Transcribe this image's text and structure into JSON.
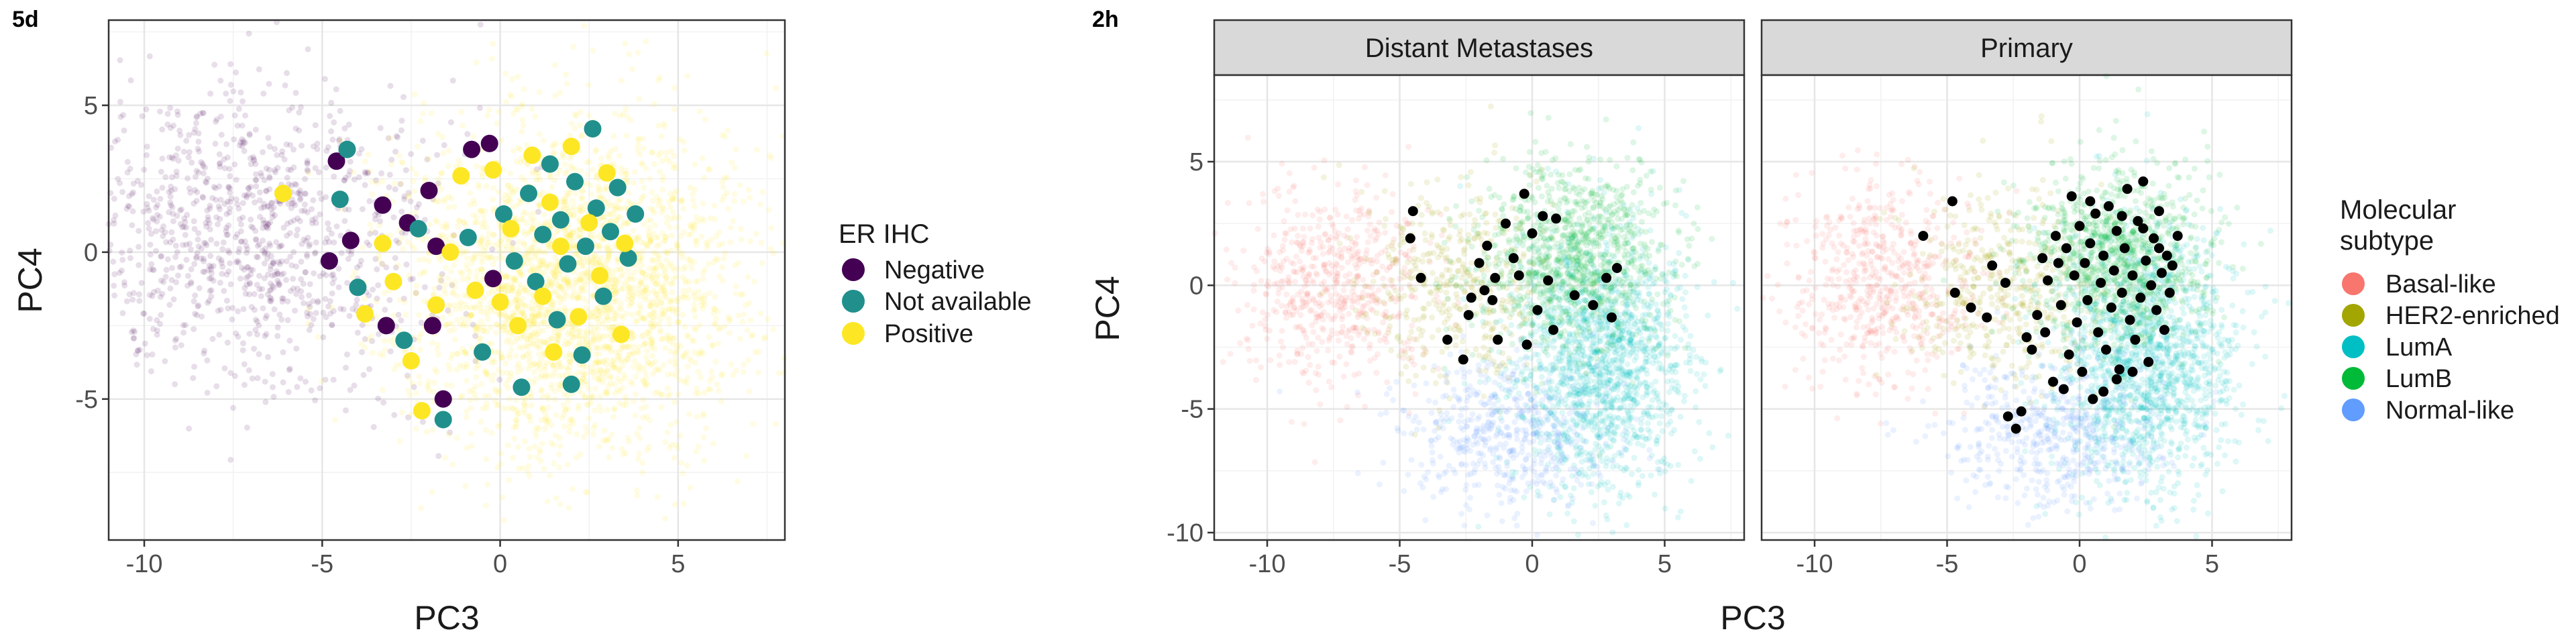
{
  "figure": {
    "panel_left_label": "5d",
    "panel_right_label": "2h",
    "facet_strip_labels": [
      "Distant Metastases",
      "Primary"
    ]
  },
  "chart_data": [
    {
      "id": "5d",
      "type": "scatter",
      "title": "",
      "xlabel": "PC3",
      "ylabel": "PC4",
      "xlim": [
        -11,
        8
      ],
      "ylim": [
        -9.8,
        7.9
      ],
      "xticks": [
        -10,
        -5,
        0,
        5
      ],
      "yticks": [
        -5,
        0,
        5
      ],
      "grid": true,
      "legend_title": "ER IHC",
      "legend_position": "right",
      "series": [
        {
          "name": "Negative",
          "color": "#440154",
          "background_cloud": {
            "role": "faint density cloud",
            "center": [
              -7,
              0.5
            ],
            "spread": [
              2.6,
              2.6
            ],
            "count": 1100
          }
        },
        {
          "name": "Not available",
          "color": "#21908C"
        },
        {
          "name": "Positive",
          "color": "#FDE725",
          "background_cloud": {
            "role": "faint density cloud",
            "center": [
              2,
              -1.2
            ],
            "spread": [
              2.4,
              2.8
            ],
            "count": 2800
          }
        }
      ],
      "highlighted_points": [
        {
          "series": "Negative",
          "x": -4.6,
          "y": 3.1
        },
        {
          "series": "Negative",
          "x": -4.8,
          "y": -0.3
        },
        {
          "series": "Negative",
          "x": -4.2,
          "y": 0.4
        },
        {
          "series": "Negative",
          "x": -3.3,
          "y": 1.6
        },
        {
          "series": "Negative",
          "x": -3.2,
          "y": -2.5
        },
        {
          "series": "Negative",
          "x": -2.6,
          "y": 1.0
        },
        {
          "series": "Negative",
          "x": -2.0,
          "y": 2.1
        },
        {
          "series": "Negative",
          "x": -1.8,
          "y": 0.2
        },
        {
          "series": "Negative",
          "x": -1.9,
          "y": -2.5
        },
        {
          "series": "Negative",
          "x": -1.6,
          "y": -5.0
        },
        {
          "series": "Negative",
          "x": -0.8,
          "y": 3.5
        },
        {
          "series": "Negative",
          "x": -0.3,
          "y": 3.7
        },
        {
          "series": "Negative",
          "x": -0.2,
          "y": -0.9
        },
        {
          "series": "Not available",
          "x": -4.3,
          "y": 3.5
        },
        {
          "series": "Not available",
          "x": -4.5,
          "y": 1.8
        },
        {
          "series": "Not available",
          "x": -4.0,
          "y": -1.2
        },
        {
          "series": "Not available",
          "x": -2.7,
          "y": -3.0
        },
        {
          "series": "Not available",
          "x": -2.3,
          "y": 0.8
        },
        {
          "series": "Not available",
          "x": -1.6,
          "y": -5.7
        },
        {
          "series": "Not available",
          "x": -0.9,
          "y": 0.5
        },
        {
          "series": "Not available",
          "x": -0.5,
          "y": -3.4
        },
        {
          "series": "Not available",
          "x": 0.1,
          "y": 1.3
        },
        {
          "series": "Not available",
          "x": 0.4,
          "y": -0.3
        },
        {
          "series": "Not available",
          "x": 0.6,
          "y": -4.6
        },
        {
          "series": "Not available",
          "x": 0.8,
          "y": 2.0
        },
        {
          "series": "Not available",
          "x": 1.0,
          "y": -1.0
        },
        {
          "series": "Not available",
          "x": 1.2,
          "y": 0.6
        },
        {
          "series": "Not available",
          "x": 1.4,
          "y": 3.0
        },
        {
          "series": "Not available",
          "x": 1.6,
          "y": -2.3
        },
        {
          "series": "Not available",
          "x": 1.7,
          "y": 1.1
        },
        {
          "series": "Not available",
          "x": 1.9,
          "y": -0.4
        },
        {
          "series": "Not available",
          "x": 2.1,
          "y": 2.4
        },
        {
          "series": "Not available",
          "x": 2.3,
          "y": -3.5
        },
        {
          "series": "Not available",
          "x": 2.4,
          "y": 0.2
        },
        {
          "series": "Not available",
          "x": 2.6,
          "y": 4.2
        },
        {
          "series": "Not available",
          "x": 2.7,
          "y": 1.5
        },
        {
          "series": "Not available",
          "x": 2.9,
          "y": -1.5
        },
        {
          "series": "Not available",
          "x": 3.1,
          "y": 0.7
        },
        {
          "series": "Not available",
          "x": 3.3,
          "y": 2.2
        },
        {
          "series": "Not available",
          "x": 3.6,
          "y": -0.2
        },
        {
          "series": "Not available",
          "x": 3.8,
          "y": 1.3
        },
        {
          "series": "Not available",
          "x": 2.0,
          "y": -4.5
        },
        {
          "series": "Positive",
          "x": -6.1,
          "y": 2.0
        },
        {
          "series": "Positive",
          "x": -3.8,
          "y": -2.1
        },
        {
          "series": "Positive",
          "x": -3.3,
          "y": 0.3
        },
        {
          "series": "Positive",
          "x": -3.0,
          "y": -1.0
        },
        {
          "series": "Positive",
          "x": -2.5,
          "y": -3.7
        },
        {
          "series": "Positive",
          "x": -2.2,
          "y": -5.4
        },
        {
          "series": "Positive",
          "x": -1.8,
          "y": -1.8
        },
        {
          "series": "Positive",
          "x": -1.4,
          "y": 0.0
        },
        {
          "series": "Positive",
          "x": -1.1,
          "y": 2.6
        },
        {
          "series": "Positive",
          "x": -0.7,
          "y": -1.3
        },
        {
          "series": "Positive",
          "x": -0.2,
          "y": 2.8
        },
        {
          "series": "Positive",
          "x": 0.3,
          "y": 0.8
        },
        {
          "series": "Positive",
          "x": 0.5,
          "y": -2.5
        },
        {
          "series": "Positive",
          "x": 0.9,
          "y": 3.3
        },
        {
          "series": "Positive",
          "x": 1.2,
          "y": -1.5
        },
        {
          "series": "Positive",
          "x": 1.4,
          "y": 1.7
        },
        {
          "series": "Positive",
          "x": 1.7,
          "y": 0.2
        },
        {
          "series": "Positive",
          "x": 2.0,
          "y": 3.6
        },
        {
          "series": "Positive",
          "x": 2.2,
          "y": -2.2
        },
        {
          "series": "Positive",
          "x": 2.5,
          "y": 1.0
        },
        {
          "series": "Positive",
          "x": 2.8,
          "y": -0.8
        },
        {
          "series": "Positive",
          "x": 3.0,
          "y": 2.7
        },
        {
          "series": "Positive",
          "x": 3.4,
          "y": -2.8
        },
        {
          "series": "Positive",
          "x": 3.5,
          "y": 0.3
        },
        {
          "series": "Positive",
          "x": 1.5,
          "y": -3.4
        },
        {
          "series": "Positive",
          "x": 0.0,
          "y": -1.7
        }
      ]
    },
    {
      "id": "2h",
      "type": "scatter",
      "title": "",
      "xlabel": "PC3",
      "ylabel": "PC4",
      "xlim": [
        -12,
        8
      ],
      "ylim": [
        -10.3,
        8.5
      ],
      "xticks": [
        -10,
        -5,
        0,
        5
      ],
      "yticks": [
        -10,
        -5,
        0,
        5
      ],
      "grid": true,
      "facets": [
        "Distant Metastases",
        "Primary"
      ],
      "legend_title_lines": [
        "Molecular",
        "subtype"
      ],
      "legend_position": "right",
      "series": [
        {
          "name": "Basal-like",
          "color": "#F8766D",
          "background_cloud": {
            "role": "faint density cloud",
            "center": [
              -7.5,
              0.0
            ],
            "spread": [
              1.8,
              2.0
            ],
            "count": 700
          }
        },
        {
          "name": "HER2-enriched",
          "color": "#A3A500",
          "background_cloud": {
            "role": "faint density cloud",
            "center": [
              -3.0,
              0.0
            ],
            "spread": [
              1.8,
              2.0
            ],
            "count": 500
          }
        },
        {
          "name": "LumA",
          "color": "#00BFC4",
          "background_cloud": {
            "role": "faint density cloud",
            "center": [
              2.5,
              -3.0
            ],
            "spread": [
              1.7,
              2.6
            ],
            "count": 1800
          }
        },
        {
          "name": "LumB",
          "color": "#00BA38",
          "background_cloud": {
            "role": "faint density cloud",
            "center": [
              1.5,
              1.2
            ],
            "spread": [
              1.7,
              1.8
            ],
            "count": 1200
          }
        },
        {
          "name": "Normal-like",
          "color": "#619CFF",
          "background_cloud": {
            "role": "faint density cloud",
            "center": [
              -1.0,
              -6.0
            ],
            "spread": [
              2.0,
              1.5
            ],
            "count": 600
          }
        }
      ],
      "highlighted_points_distant_metastases": [
        {
          "x": -4.5,
          "y": 3.0
        },
        {
          "x": -4.6,
          "y": 1.9
        },
        {
          "x": -4.2,
          "y": 0.3
        },
        {
          "x": -3.2,
          "y": -2.2
        },
        {
          "x": -2.6,
          "y": -3.0
        },
        {
          "x": -2.3,
          "y": -0.5
        },
        {
          "x": -2.0,
          "y": 0.9
        },
        {
          "x": -1.7,
          "y": 1.6
        },
        {
          "x": -1.5,
          "y": -0.6
        },
        {
          "x": -1.3,
          "y": -2.2
        },
        {
          "x": -1.0,
          "y": 2.5
        },
        {
          "x": -0.7,
          "y": 1.1
        },
        {
          "x": -0.5,
          "y": 0.4
        },
        {
          "x": -0.3,
          "y": 3.7
        },
        {
          "x": 0.0,
          "y": 2.1
        },
        {
          "x": 0.2,
          "y": -1.0
        },
        {
          "x": 0.4,
          "y": 2.8
        },
        {
          "x": 0.6,
          "y": 0.2
        },
        {
          "x": 0.8,
          "y": -1.8
        },
        {
          "x": 0.9,
          "y": 2.7
        },
        {
          "x": -0.2,
          "y": -2.4
        },
        {
          "x": -1.4,
          "y": 0.3
        },
        {
          "x": 1.6,
          "y": -0.4
        },
        {
          "x": 2.3,
          "y": -0.8
        },
        {
          "x": 2.8,
          "y": 0.3
        },
        {
          "x": 3.2,
          "y": 0.7
        },
        {
          "x": 3.0,
          "y": -1.3
        },
        {
          "x": -2.4,
          "y": -1.2
        },
        {
          "x": -1.8,
          "y": -0.2
        }
      ],
      "highlighted_points_primary": [
        {
          "x": -5.9,
          "y": 2.0
        },
        {
          "x": -4.8,
          "y": 3.4
        },
        {
          "x": -4.7,
          "y": -0.3
        },
        {
          "x": -4.1,
          "y": -0.9
        },
        {
          "x": -3.5,
          "y": -1.3
        },
        {
          "x": -3.3,
          "y": 0.8
        },
        {
          "x": -2.8,
          "y": 0.1
        },
        {
          "x": -2.7,
          "y": -5.3
        },
        {
          "x": -2.4,
          "y": -5.8
        },
        {
          "x": -2.2,
          "y": -5.1
        },
        {
          "x": -2.0,
          "y": -2.1
        },
        {
          "x": -1.8,
          "y": -2.6
        },
        {
          "x": -1.6,
          "y": -1.2
        },
        {
          "x": -1.4,
          "y": 1.1
        },
        {
          "x": -1.2,
          "y": 0.2
        },
        {
          "x": -1.0,
          "y": -3.9
        },
        {
          "x": -0.9,
          "y": 2.0
        },
        {
          "x": -0.7,
          "y": -0.8
        },
        {
          "x": -0.5,
          "y": 1.5
        },
        {
          "x": -0.4,
          "y": -2.8
        },
        {
          "x": -0.3,
          "y": 3.6
        },
        {
          "x": -0.2,
          "y": 0.4
        },
        {
          "x": -0.1,
          "y": -1.5
        },
        {
          "x": 0.0,
          "y": 2.4
        },
        {
          "x": 0.1,
          "y": -3.5
        },
        {
          "x": 0.2,
          "y": 0.9
        },
        {
          "x": 0.3,
          "y": -0.6
        },
        {
          "x": 0.4,
          "y": 1.7
        },
        {
          "x": 0.5,
          "y": -4.6
        },
        {
          "x": 0.6,
          "y": 2.9
        },
        {
          "x": 0.7,
          "y": -1.9
        },
        {
          "x": 0.8,
          "y": 0.1
        },
        {
          "x": 0.9,
          "y": 1.2
        },
        {
          "x": 1.0,
          "y": -2.6
        },
        {
          "x": 1.1,
          "y": 3.2
        },
        {
          "x": 1.2,
          "y": -0.9
        },
        {
          "x": 1.3,
          "y": 0.6
        },
        {
          "x": 1.4,
          "y": 2.2
        },
        {
          "x": 1.5,
          "y": -3.4
        },
        {
          "x": 1.6,
          "y": -0.3
        },
        {
          "x": 1.7,
          "y": 1.5
        },
        {
          "x": 1.8,
          "y": 3.9
        },
        {
          "x": 1.9,
          "y": -1.4
        },
        {
          "x": 2.0,
          "y": 0.4
        },
        {
          "x": 2.1,
          "y": -2.2
        },
        {
          "x": 2.2,
          "y": 2.6
        },
        {
          "x": 2.3,
          "y": -0.5
        },
        {
          "x": 2.4,
          "y": 4.2
        },
        {
          "x": 2.5,
          "y": 1.0
        },
        {
          "x": 2.6,
          "y": -3.1
        },
        {
          "x": 2.7,
          "y": 0.0
        },
        {
          "x": 2.8,
          "y": 1.9
        },
        {
          "x": 2.9,
          "y": -1.0
        },
        {
          "x": 3.0,
          "y": 3.0
        },
        {
          "x": 3.1,
          "y": 0.5
        },
        {
          "x": 3.2,
          "y": -1.8
        },
        {
          "x": 3.3,
          "y": 1.2
        },
        {
          "x": 3.4,
          "y": -0.3
        },
        {
          "x": 3.5,
          "y": 0.8
        },
        {
          "x": 3.7,
          "y": 2.0
        },
        {
          "x": -0.6,
          "y": -4.2
        },
        {
          "x": 0.9,
          "y": -4.3
        },
        {
          "x": 1.4,
          "y": -3.8
        },
        {
          "x": 2.0,
          "y": -3.5
        },
        {
          "x": -1.3,
          "y": -1.9
        },
        {
          "x": -0.8,
          "y": 0.9
        },
        {
          "x": 0.4,
          "y": 3.4
        },
        {
          "x": 1.6,
          "y": 2.8
        },
        {
          "x": 2.4,
          "y": 2.3
        },
        {
          "x": 3.0,
          "y": 1.5
        }
      ],
      "highlight_color": "#000000"
    }
  ]
}
